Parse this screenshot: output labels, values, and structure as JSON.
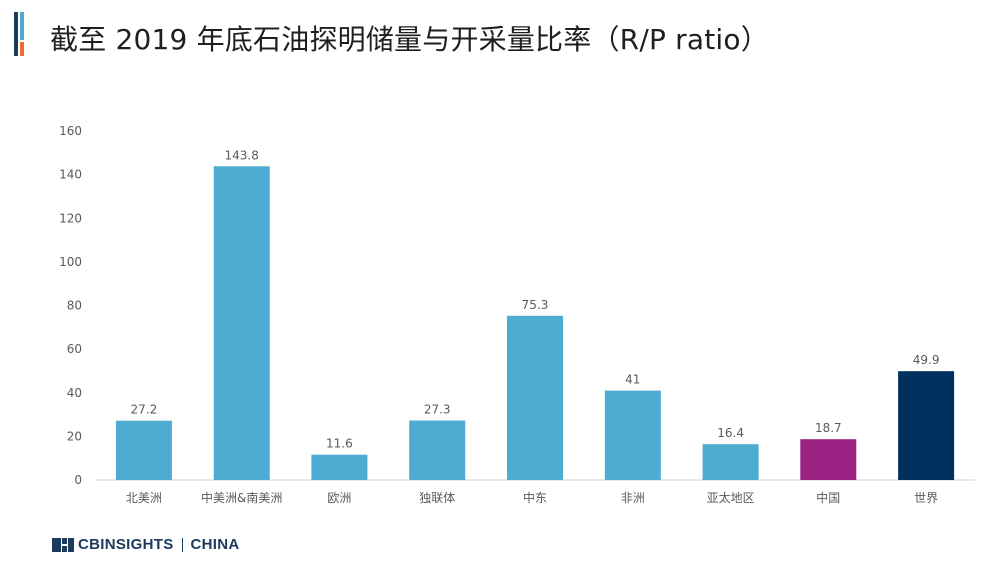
{
  "header": {
    "title": "截至 2019 年底石油探明储量与开采量比率（R/P ratio）"
  },
  "footer": {
    "brand_left": "CBINSIGHTS",
    "brand_right": "CHINA",
    "logo_icon": "cb-insights-logo-icon"
  },
  "colors": {
    "bar_default": "#4eabd1",
    "bar_china": "#9b2182",
    "bar_world": "#00305e",
    "axis_text": "#5a5a5a",
    "axis_line": "#d0d0d0",
    "title_accent_dark": "#1b3a5c",
    "title_accent_blue": "#4ba8d0",
    "title_accent_orange": "#ef6b2e"
  },
  "chart_data": {
    "type": "bar",
    "title": "截至 2019 年底石油探明储量与开采量比率（R/P ratio）",
    "xlabel": "",
    "ylabel": "",
    "ylim": [
      0,
      160
    ],
    "yticks": [
      0,
      20,
      40,
      60,
      80,
      100,
      120,
      140,
      160
    ],
    "grid": false,
    "categories": [
      "北美洲",
      "中美洲&南美洲",
      "欧洲",
      "独联体",
      "中东",
      "非洲",
      "亚太地区",
      "中国",
      "世界"
    ],
    "values": [
      27.2,
      143.8,
      11.6,
      27.3,
      75.3,
      41,
      16.4,
      18.7,
      49.9
    ],
    "data_labels": [
      "27.2",
      "143.8",
      "11.6",
      "27.3",
      "75.3",
      "41",
      "16.4",
      "18.7",
      "49.9"
    ],
    "bar_colors": [
      "#4eabd1",
      "#4eabd1",
      "#4eabd1",
      "#4eabd1",
      "#4eabd1",
      "#4eabd1",
      "#4eabd1",
      "#9b2182",
      "#00305e"
    ]
  }
}
